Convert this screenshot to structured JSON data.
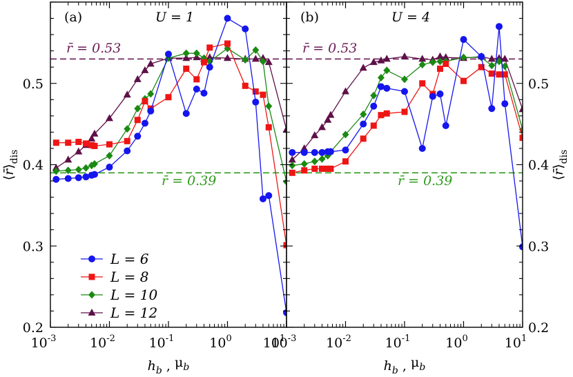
{
  "chart_data": {
    "type": "line",
    "xscale": "log",
    "xlim": [
      0.001,
      10
    ],
    "ylim": [
      0.2,
      0.6
    ],
    "xlabel": "h_b , μ_b",
    "ylabel": "⟨r̄⟩_dis",
    "y_ticks": [
      "0.2",
      "0.3",
      "0.4",
      "0.5"
    ],
    "x_tick_labels": [
      {
        "base": "10",
        "exp": "-3"
      },
      {
        "base": "10",
        "exp": "-2"
      },
      {
        "base": "10",
        "exp": "-1"
      },
      {
        "base": "10",
        "exp": "0"
      },
      {
        "base": "10",
        "exp": "1"
      }
    ],
    "reference_lines": [
      {
        "value": 0.53,
        "label": "r̄ = 0.53",
        "color": "#6b1d54"
      },
      {
        "value": 0.39,
        "label": "r̄ = 0.39",
        "color": "#2e9a1b"
      }
    ],
    "legend": [
      {
        "label": "L = 6",
        "color": "#1515ee",
        "marker": "circle"
      },
      {
        "label": "L = 8",
        "color": "#ee1515",
        "marker": "square"
      },
      {
        "label": "L = 10",
        "color": "#1a8a12",
        "marker": "diamond"
      },
      {
        "label": "L = 12",
        "color": "#5e1048",
        "marker": "triangle"
      }
    ],
    "panels": [
      {
        "tag": "(a)",
        "title": "U = 1",
        "series": [
          {
            "name": "L = 6",
            "x": [
              0.00125,
              0.002,
              0.003,
              0.004,
              0.005,
              0.0056,
              0.01,
              0.02,
              0.03,
              0.04,
              0.05,
              0.1,
              0.2,
              0.3,
              0.4,
              0.5,
              1,
              2,
              3,
              4,
              5,
              10
            ],
            "y": [
              0.382,
              0.383,
              0.384,
              0.385,
              0.387,
              0.388,
              0.397,
              0.417,
              0.435,
              0.451,
              0.466,
              0.536,
              0.463,
              0.493,
              0.488,
              0.52,
              0.58,
              0.567,
              0.477,
              0.358,
              0.362,
              0.218
            ]
          },
          {
            "name": "L = 8",
            "x": [
              0.00125,
              0.002,
              0.003,
              0.004,
              0.005,
              0.0056,
              0.01,
              0.02,
              0.03,
              0.04,
              0.05,
              0.1,
              0.2,
              0.3,
              0.4,
              0.5,
              1,
              2,
              3,
              4,
              5,
              10
            ],
            "y": [
              0.427,
              0.427,
              0.428,
              0.426,
              0.424,
              0.423,
              0.425,
              0.429,
              0.455,
              0.478,
              0.469,
              0.483,
              0.518,
              0.505,
              0.526,
              0.544,
              0.549,
              0.497,
              0.49,
              0.486,
              0.446,
              0.301
            ]
          },
          {
            "name": "L = 10",
            "x": [
              0.00125,
              0.002,
              0.003,
              0.004,
              0.005,
              0.0056,
              0.01,
              0.02,
              0.03,
              0.04,
              0.05,
              0.1,
              0.2,
              0.3,
              0.4,
              0.5,
              1,
              2,
              3,
              4,
              5,
              10
            ],
            "y": [
              0.392,
              0.393,
              0.394,
              0.396,
              0.399,
              0.401,
              0.411,
              0.444,
              0.469,
              0.481,
              0.487,
              0.531,
              0.537,
              0.537,
              0.531,
              0.527,
              0.543,
              0.529,
              0.541,
              0.527,
              0.472,
              0.379
            ]
          },
          {
            "name": "L = 12",
            "x": [
              0.00125,
              0.002,
              0.003,
              0.004,
              0.005,
              0.0056,
              0.01,
              0.02,
              0.03,
              0.04,
              0.05,
              0.1,
              0.2,
              0.3,
              0.4,
              0.5,
              1,
              2,
              3,
              4,
              5,
              10
            ],
            "y": [
              0.396,
              0.406,
              0.416,
              0.424,
              0.432,
              0.438,
              0.457,
              0.486,
              0.505,
              0.516,
              0.524,
              0.531,
              0.531,
              0.532,
              0.53,
              0.532,
              0.531,
              0.53,
              0.53,
              0.531,
              0.526,
              0.443
            ]
          }
        ]
      },
      {
        "tag": "(b)",
        "title": "U = 4",
        "series": [
          {
            "name": "L = 6",
            "x": [
              0.00125,
              0.002,
              0.003,
              0.004,
              0.005,
              0.0056,
              0.01,
              0.02,
              0.03,
              0.04,
              0.05,
              0.1,
              0.2,
              0.3,
              0.4,
              0.5,
              1,
              2,
              3,
              4,
              5,
              10
            ],
            "y": [
              0.415,
              0.415,
              0.415,
              0.415,
              0.416,
              0.416,
              0.418,
              0.45,
              0.472,
              0.496,
              0.494,
              0.49,
              0.42,
              0.484,
              0.487,
              0.448,
              0.554,
              0.533,
              0.469,
              0.57,
              0.475,
              0.299
            ]
          },
          {
            "name": "L = 8",
            "x": [
              0.00125,
              0.002,
              0.003,
              0.004,
              0.005,
              0.0056,
              0.01,
              0.02,
              0.03,
              0.04,
              0.05,
              0.1,
              0.2,
              0.3,
              0.4,
              0.5,
              1,
              2,
              3,
              4,
              5,
              10
            ],
            "y": [
              0.39,
              0.393,
              0.395,
              0.395,
              0.395,
              0.395,
              0.404,
              0.432,
              0.448,
              0.461,
              0.463,
              0.465,
              0.5,
              0.487,
              0.518,
              0.524,
              0.503,
              0.52,
              0.512,
              0.511,
              0.511,
              0.433
            ]
          },
          {
            "name": "L = 10",
            "x": [
              0.00125,
              0.002,
              0.003,
              0.004,
              0.005,
              0.0056,
              0.01,
              0.02,
              0.03,
              0.04,
              0.05,
              0.1,
              0.2,
              0.3,
              0.4,
              0.5,
              1,
              2,
              3,
              4,
              5,
              10
            ],
            "y": [
              0.399,
              0.401,
              0.404,
              0.407,
              0.411,
              0.416,
              0.437,
              0.462,
              0.485,
              0.507,
              0.516,
              0.505,
              0.523,
              0.526,
              0.527,
              0.527,
              0.532,
              0.532,
              0.522,
              0.527,
              0.521,
              0.443
            ]
          },
          {
            "name": "L = 12",
            "x": [
              0.00125,
              0.002,
              0.003,
              0.004,
              0.005,
              0.0056,
              0.01,
              0.02,
              0.03,
              0.04,
              0.05,
              0.1,
              0.2,
              0.3,
              0.4,
              0.5,
              1,
              2,
              3,
              4,
              5,
              10
            ],
            "y": [
              0.406,
              0.42,
              0.436,
              0.446,
              0.455,
              0.461,
              0.49,
              0.519,
              0.526,
              0.528,
              0.53,
              0.533,
              0.53,
              0.529,
              0.533,
              0.532,
              0.531,
              0.533,
              0.53,
              0.531,
              0.53,
              0.468
            ]
          }
        ]
      }
    ]
  }
}
